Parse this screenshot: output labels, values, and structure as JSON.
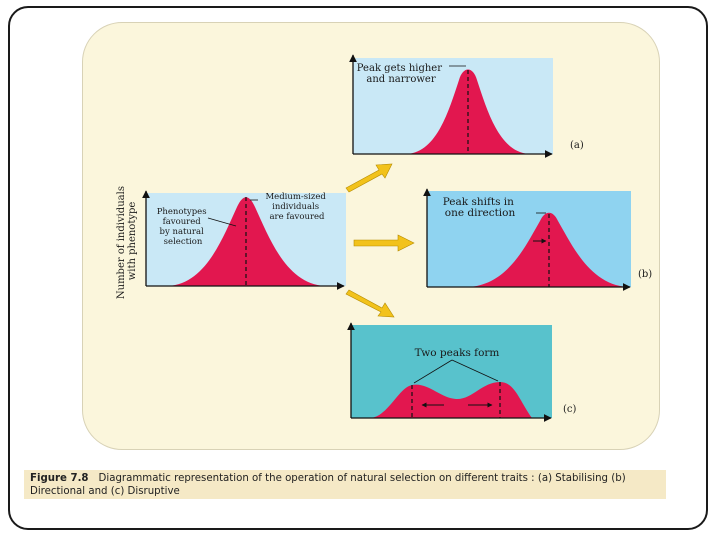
{
  "diagram": {
    "y_axis_label_line1": "Number of individuals",
    "y_axis_label_line2": "with phenotype",
    "original": {
      "left_label_lines": [
        "Phenotypes",
        "favoured",
        "by natural",
        "selection"
      ],
      "right_label_lines": [
        "Medium-sized",
        "individuals",
        "are favoured"
      ]
    },
    "panel_a": {
      "label_lines": [
        "Peak gets higher",
        "and narrower"
      ],
      "tag": "(a)"
    },
    "panel_b": {
      "label_lines": [
        "Peak shifts in",
        "one direction"
      ],
      "tag": "(b)"
    },
    "panel_c": {
      "label": "Two peaks form",
      "tag": "(c)"
    },
    "colors": {
      "curve_fill": "#e2174f",
      "panel_a_bg": "#c9e8f6",
      "panel_b_bg": "#8fd3f0",
      "panel_c_bg": "#58c2cc",
      "original_bg": "#c9e8f6",
      "arrow": "#f2c21b"
    }
  },
  "caption": {
    "number": "Figure 7.8",
    "text": "Diagrammatic representation of the operation of natural selection on different traits : (a) Stabilising (b) Directional and (c) Disruptive"
  }
}
